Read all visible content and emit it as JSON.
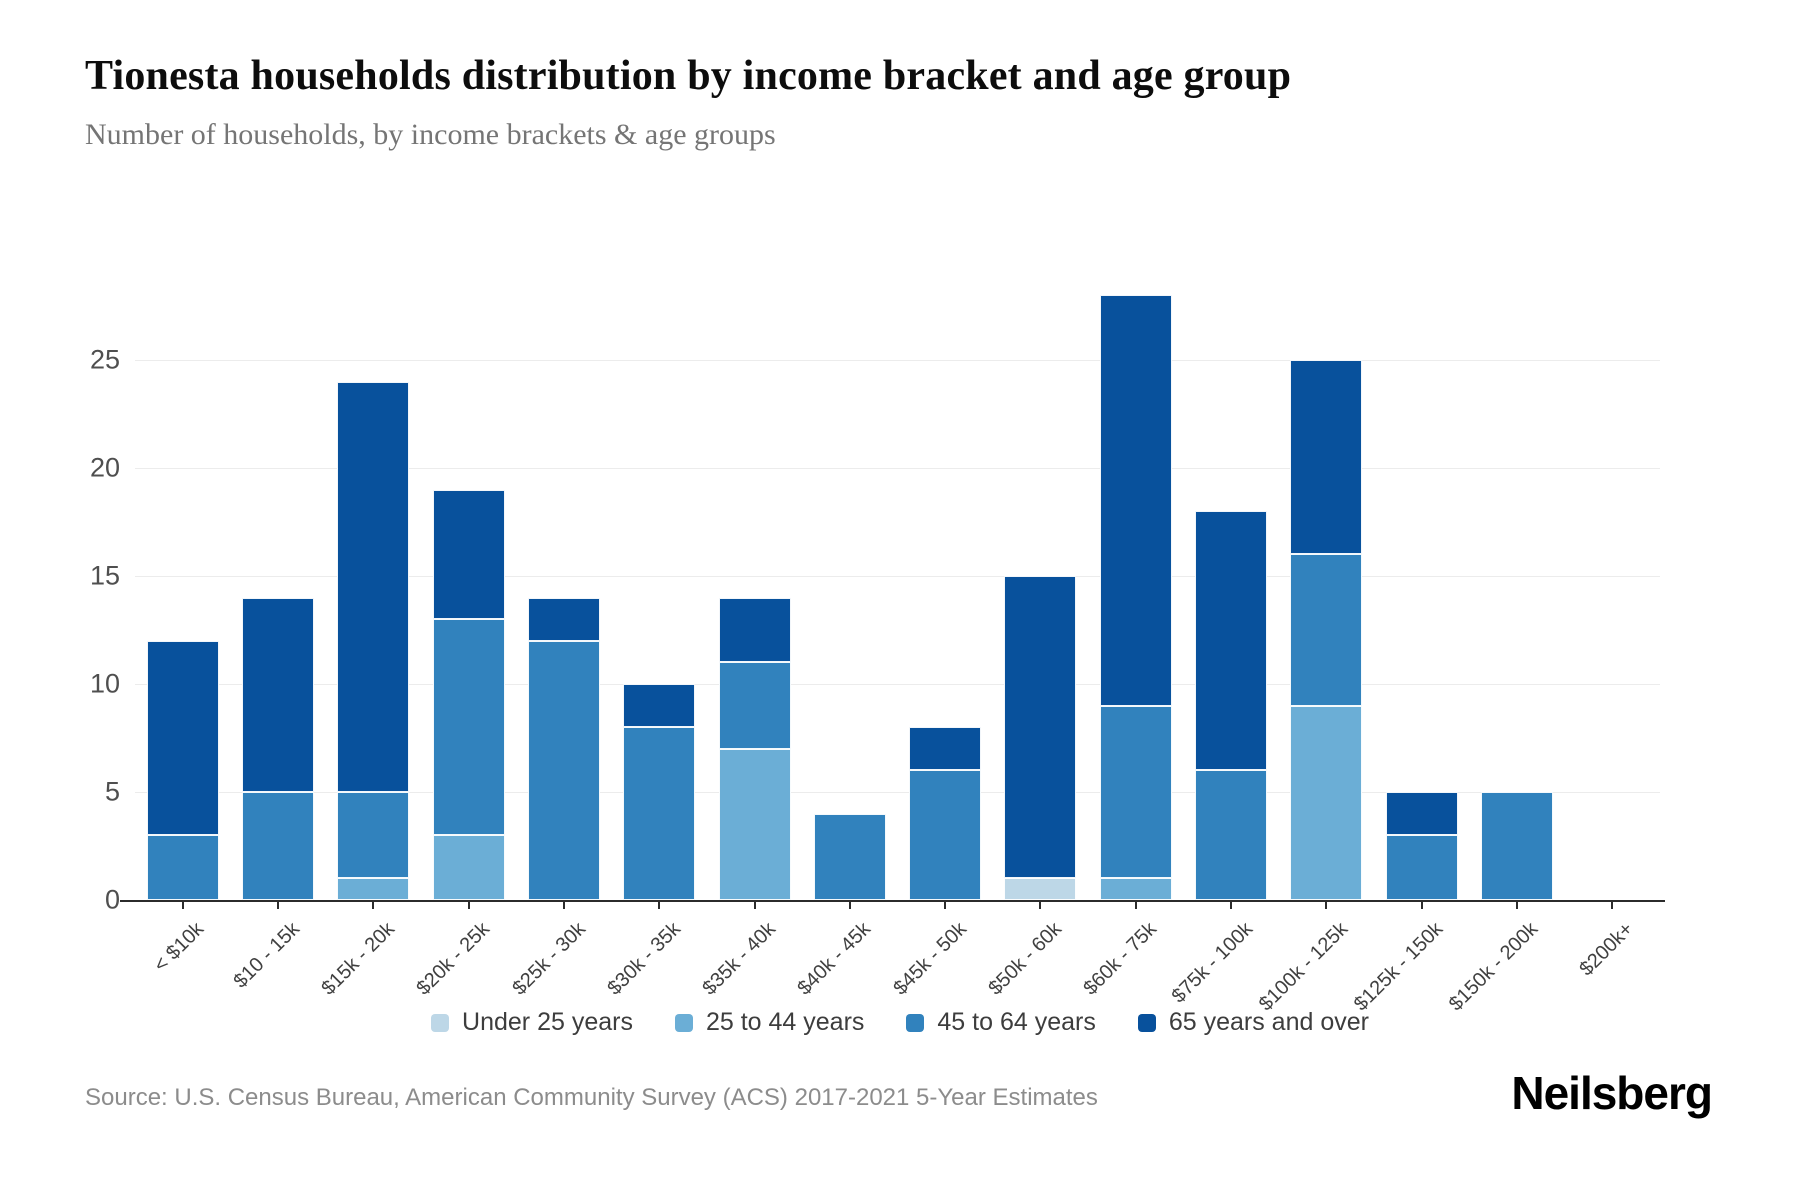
{
  "header": {
    "title": "Tionesta households distribution by income bracket and age group",
    "subtitle": "Number of households, by income brackets & age groups"
  },
  "footer": {
    "source": "Source: U.S. Census Bureau, American Community Survey (ACS) 2017-2021 5-Year Estimates",
    "brand": "Neilsberg"
  },
  "chart_data": {
    "type": "bar",
    "stacked": true,
    "title": "Tionesta households distribution by income bracket and age group",
    "subtitle": "Number of households, by income brackets & age groups",
    "xlabel": "",
    "ylabel": "Number of households",
    "categories": [
      "< $10k",
      "$10 - 15k",
      "$15k - 20k",
      "$20k - 25k",
      "$25k - 30k",
      "$30k - 35k",
      "$35k - 40k",
      "$40k - 45k",
      "$45k - 50k",
      "$50k - 60k",
      "$60k - 75k",
      "$75k - 100k",
      "$100k - 125k",
      "$125k - 150k",
      "$150k - 200k",
      "$200k+"
    ],
    "series": [
      {
        "name": "Under 25 years",
        "color": "#bdd7e7",
        "values": [
          0,
          0,
          0,
          0,
          0,
          0,
          0,
          0,
          0,
          1,
          0,
          0,
          0,
          0,
          0,
          0
        ]
      },
      {
        "name": "25 to 44 years",
        "color": "#6baed6",
        "values": [
          0,
          0,
          1,
          3,
          0,
          0,
          7,
          0,
          0,
          0,
          1,
          0,
          9,
          0,
          0,
          0
        ]
      },
      {
        "name": "45 to 64 years",
        "color": "#3182bd",
        "values": [
          3,
          5,
          4,
          10,
          12,
          8,
          4,
          4,
          6,
          0,
          8,
          6,
          7,
          3,
          5,
          0
        ]
      },
      {
        "name": "65 years and over",
        "color": "#08519c",
        "values": [
          9,
          9,
          19,
          6,
          2,
          2,
          3,
          0,
          2,
          14,
          19,
          12,
          9,
          2,
          0,
          0
        ]
      }
    ],
    "totals": [
      12,
      14,
      24,
      19,
      14,
      10,
      14,
      4,
      8,
      15,
      28,
      18,
      25,
      5,
      5,
      0
    ],
    "y_ticks": [
      0,
      5,
      10,
      15,
      20,
      25
    ],
    "ylim": [
      0,
      29
    ],
    "grid": "horizontal",
    "x_tick_rotation": -45,
    "legend_position": "bottom"
  }
}
